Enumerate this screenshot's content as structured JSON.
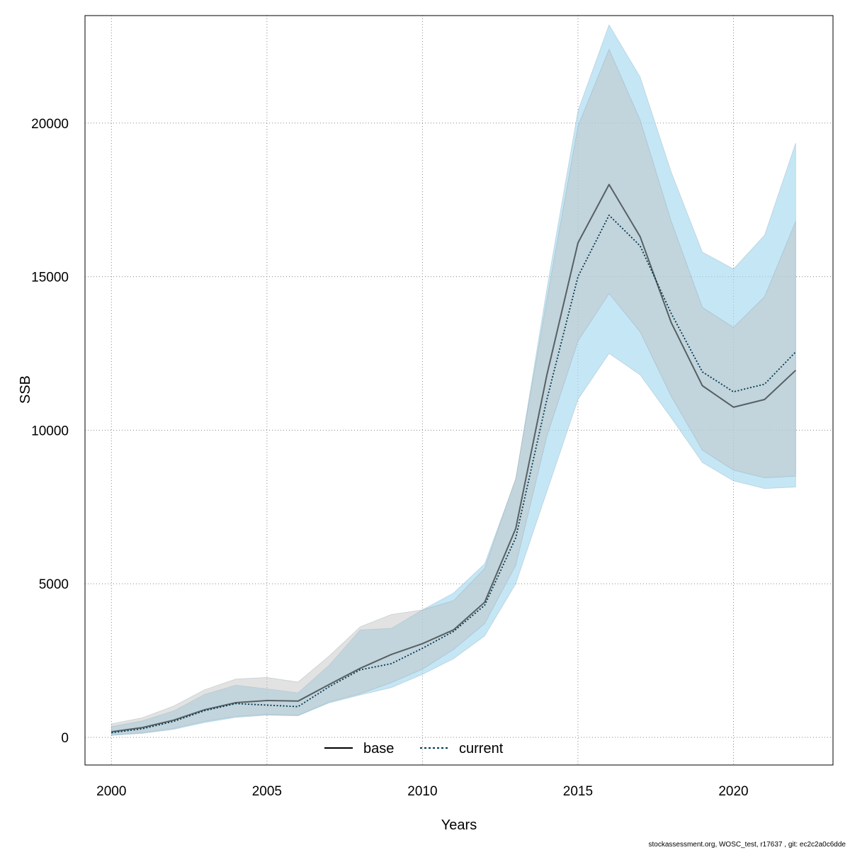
{
  "chart_data": {
    "type": "line",
    "xlabel": "Years",
    "ylabel": "SSB",
    "xlim": [
      1999.15,
      2023.2
    ],
    "ylim": [
      -900,
      23500
    ],
    "x_ticks": [
      2000,
      2005,
      2010,
      2015,
      2020
    ],
    "y_ticks": [
      0,
      5000,
      10000,
      15000,
      20000
    ],
    "grid": true,
    "legend_position": "bottom-center",
    "colors": {
      "base_line": "#000000",
      "base_band": "#bebebe",
      "current_line": "#00384f",
      "current_band": "#a6d8f0",
      "grid": "#b0b0b0"
    },
    "x": [
      2000,
      2001,
      2002,
      2003,
      2004,
      2005,
      2006,
      2007,
      2008,
      2009,
      2010,
      2011,
      2012,
      2013,
      2014,
      2015,
      2016,
      2017,
      2018,
      2019,
      2020,
      2021,
      2022
    ],
    "series": [
      {
        "name": "base",
        "line_style": "solid",
        "values": [
          180,
          320,
          560,
          900,
          1130,
          1200,
          1180,
          1720,
          2250,
          2700,
          3050,
          3500,
          4400,
          6800,
          11800,
          16100,
          18000,
          16300,
          13500,
          11450,
          10750,
          11000,
          11950
        ],
        "lower": [
          80,
          150,
          290,
          520,
          680,
          750,
          720,
          1150,
          1420,
          1780,
          2220,
          2860,
          3700,
          5600,
          9800,
          12900,
          14450,
          13200,
          11100,
          9350,
          8700,
          8450,
          8500
        ],
        "upper": [
          440,
          640,
          1020,
          1550,
          1900,
          1950,
          1800,
          2650,
          3600,
          4000,
          4150,
          4450,
          5500,
          8450,
          14250,
          19900,
          22400,
          20100,
          16800,
          14000,
          13350,
          14350,
          16800
        ]
      },
      {
        "name": "current",
        "line_style": "dotted",
        "values": [
          150,
          280,
          520,
          870,
          1100,
          1050,
          1000,
          1650,
          2200,
          2400,
          2900,
          3450,
          4300,
          6500,
          11000,
          15000,
          17000,
          16000,
          13800,
          11900,
          11250,
          11500,
          12550
        ],
        "lower": [
          60,
          130,
          260,
          480,
          650,
          720,
          700,
          1120,
          1380,
          1620,
          2050,
          2560,
          3300,
          5000,
          8000,
          11000,
          12500,
          11800,
          10400,
          8950,
          8350,
          8100,
          8150
        ],
        "upper": [
          350,
          540,
          860,
          1400,
          1700,
          1580,
          1450,
          2350,
          3500,
          3550,
          4150,
          4700,
          5650,
          8400,
          14600,
          20400,
          23200,
          21500,
          18400,
          15800,
          15250,
          16350,
          19350
        ]
      }
    ]
  },
  "footer": {
    "text": "stockassessment.org, WOSC_test, r17637 , git: ec2c2a0c6dde"
  }
}
